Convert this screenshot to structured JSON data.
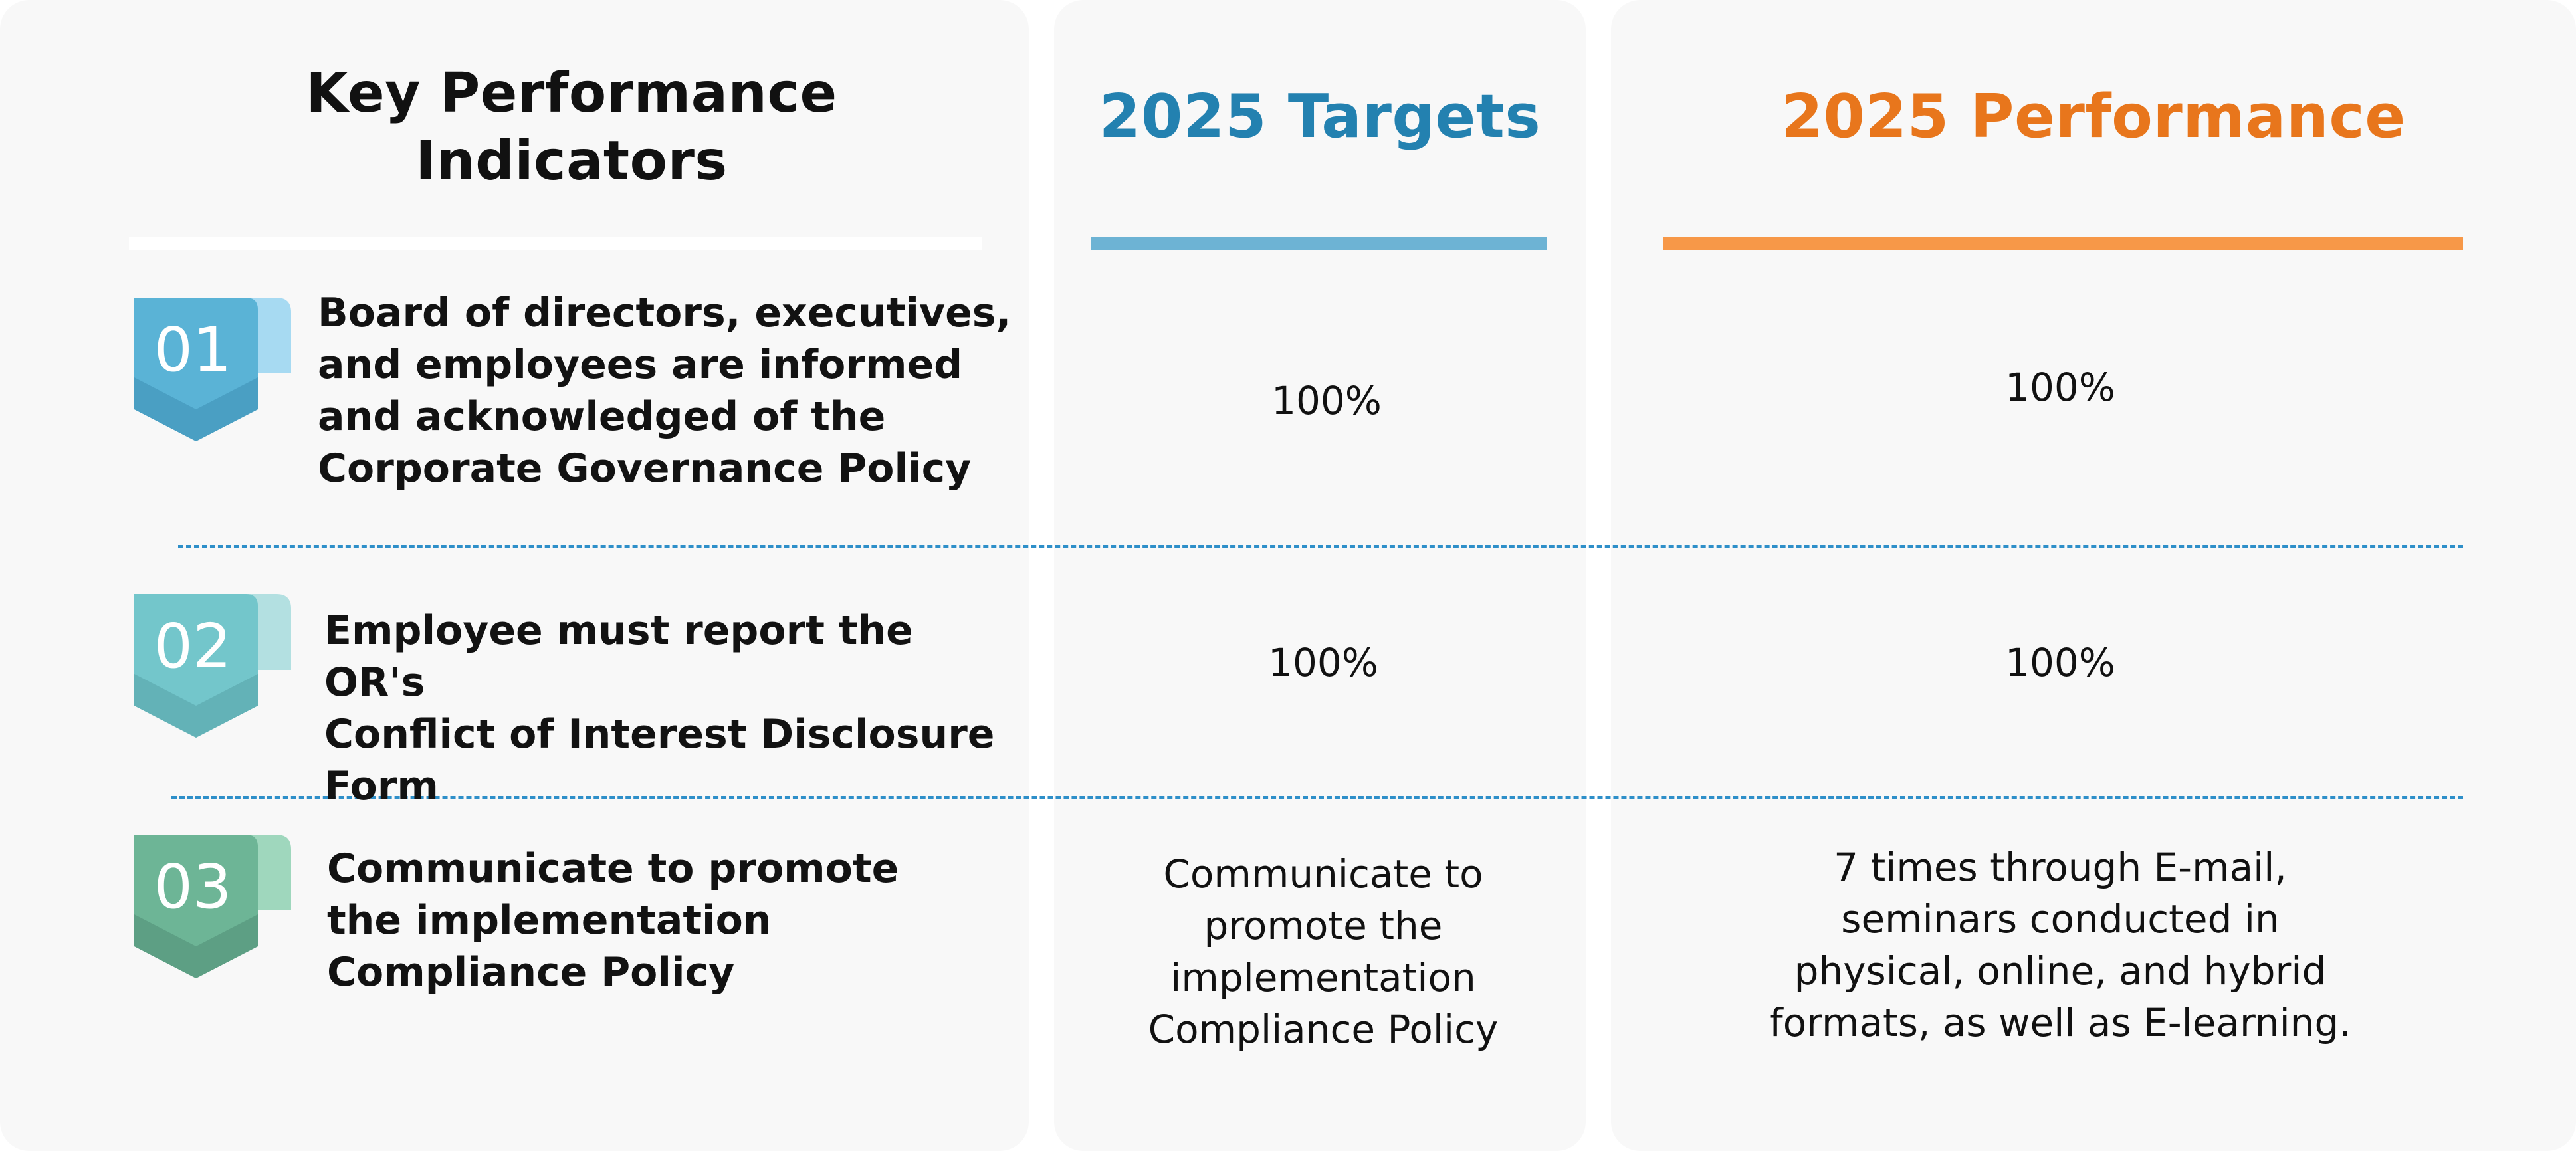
{
  "header": {
    "kpi_title": "Key Performance\nIndicators",
    "targets_title": "2025 Targets",
    "performance_title": "2025 Performance"
  },
  "colors": {
    "targets_accent": "#2381b0",
    "targets_bar": "#6db3d4",
    "performance_accent": "#e8761c",
    "performance_bar": "#f79848",
    "divider": "#2e8fc9",
    "panel_background": "#f8f8f8"
  },
  "rows": [
    {
      "badge_number": "01",
      "badge_icon": "numbered-ribbon-icon",
      "badge_colors": {
        "main": "#5ab3d6",
        "dark": "#4a9fc3",
        "tab": "#a7daf2",
        "text": "#ffffff"
      },
      "kpi": "Board of directors, executives,\nand employees are informed\nand acknowledged of the\nCorporate Governance Policy",
      "target": "100%",
      "performance": "100%"
    },
    {
      "badge_number": "02",
      "badge_icon": "numbered-ribbon-icon",
      "badge_colors": {
        "main": "#73c6cb",
        "dark": "#63b2b7",
        "tab": "#b3e0e1",
        "text": "#ffffff"
      },
      "kpi": "Employee must report the OR's\nConflict of Interest Disclosure\nForm",
      "target": "100%",
      "performance": "100%"
    },
    {
      "badge_number": "03",
      "badge_icon": "numbered-ribbon-icon",
      "badge_colors": {
        "main": "#6db596",
        "dark": "#5d9f84",
        "tab": "#9fd7bd",
        "text": "#ffffff"
      },
      "kpi": "Communicate to promote\nthe implementation\nCompliance Policy",
      "target": "Communicate to\npromote the\nimplementation\nCompliance Policy",
      "performance": "7 times through E-mail,\nseminars conducted in\nphysical, online, and hybrid\nformats, as well as E-learning."
    }
  ]
}
